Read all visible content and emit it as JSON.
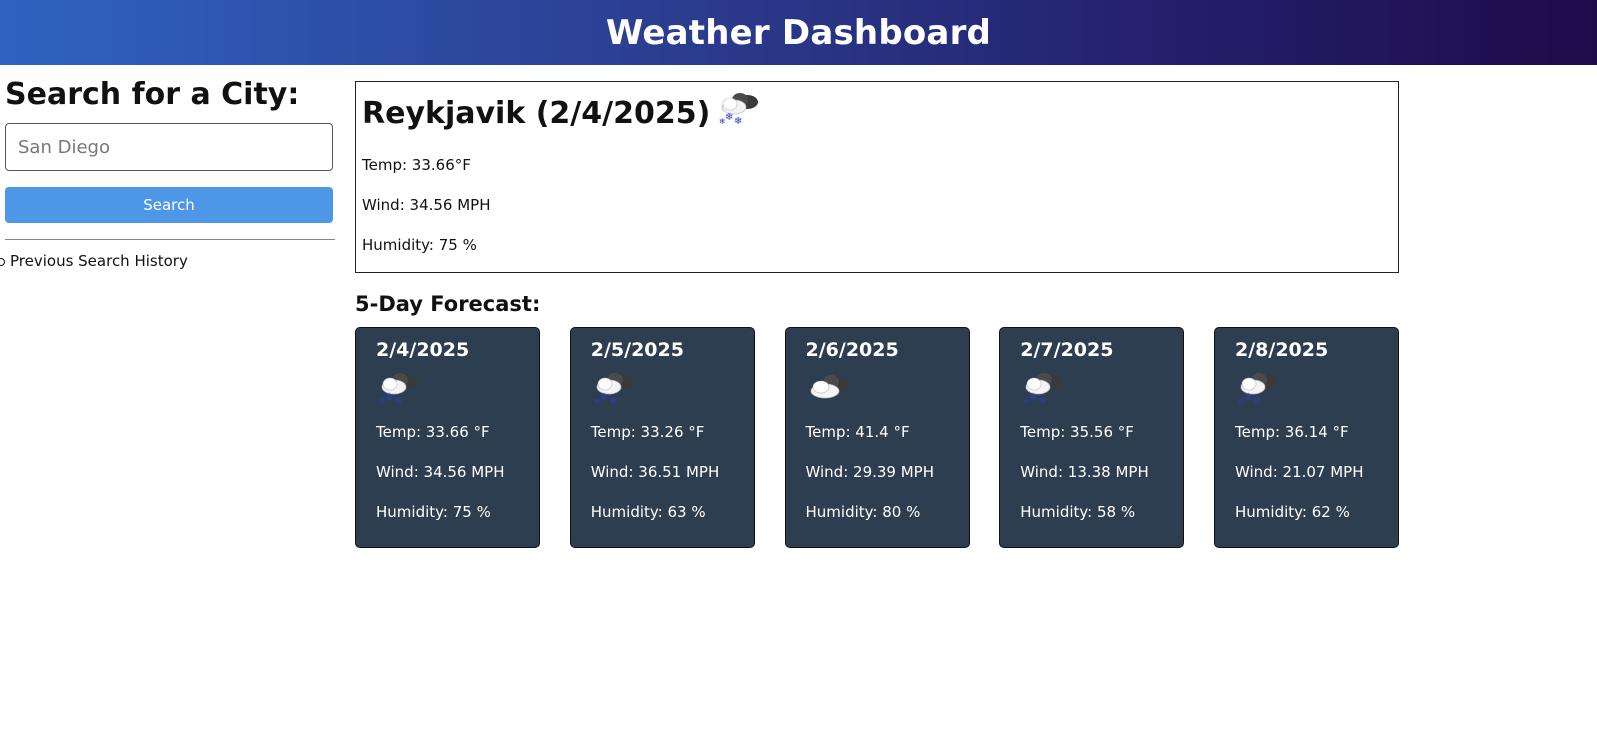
{
  "header": {
    "title": "Weather Dashboard"
  },
  "search": {
    "heading": "Search for a City:",
    "placeholder": "San Diego",
    "button_label": "Search",
    "history_label": "Previous Search History"
  },
  "current": {
    "title": "Reykjavik (2/4/2025)",
    "icon": "snow-cloud-icon",
    "temp": "Temp: 33.66°F",
    "wind": "Wind: 34.56 MPH",
    "humidity": "Humidity: 75 %"
  },
  "forecast": {
    "heading": "5-Day Forecast:",
    "days": [
      {
        "date": "2/4/2025",
        "icon": "snow-cloud-icon",
        "temp": "Temp: 33.66 °F",
        "wind": "Wind: 34.56 MPH",
        "humidity": "Humidity: 75 %"
      },
      {
        "date": "2/5/2025",
        "icon": "snow-cloud-icon",
        "temp": "Temp: 33.26 °F",
        "wind": "Wind: 36.51 MPH",
        "humidity": "Humidity: 63 %"
      },
      {
        "date": "2/6/2025",
        "icon": "cloud-icon",
        "temp": "Temp: 41.4 °F",
        "wind": "Wind: 29.39 MPH",
        "humidity": "Humidity: 80 %"
      },
      {
        "date": "2/7/2025",
        "icon": "snow-cloud-icon",
        "temp": "Temp: 35.56 °F",
        "wind": "Wind: 13.38 MPH",
        "humidity": "Humidity: 58 %"
      },
      {
        "date": "2/8/2025",
        "icon": "snow-cloud-icon",
        "temp": "Temp: 36.14 °F",
        "wind": "Wind: 21.07 MPH",
        "humidity": "Humidity: 62 %"
      }
    ]
  },
  "colors": {
    "header_start": "#2f63c2",
    "header_end": "#1f0b4a",
    "button": "#4e96e6",
    "card_bg": "#2d3e50"
  }
}
